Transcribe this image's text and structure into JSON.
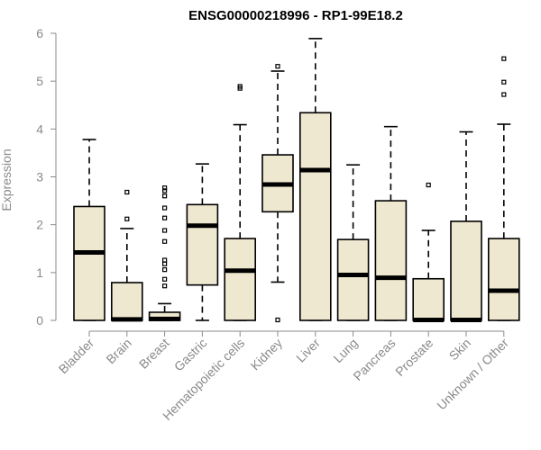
{
  "chart_data": {
    "type": "boxplot",
    "title": "ENSG00000218996 - RP1-99E18.2",
    "xlabel": "",
    "ylabel": "Expression",
    "ylim": [
      0,
      6
    ],
    "yticks": [
      0,
      1,
      2,
      3,
      4,
      5,
      6
    ],
    "categories": [
      "Bladder",
      "Brain",
      "Breast",
      "Gastric",
      "Hematopoietic cells",
      "Kidney",
      "Liver",
      "Lung",
      "Pancreas",
      "Prostate",
      "Skin",
      "Unknown / Other"
    ],
    "series": [
      {
        "name": "Bladder",
        "min": 0,
        "q1": 0,
        "median": 1.42,
        "q3": 2.38,
        "max": 3.78,
        "outliers": []
      },
      {
        "name": "Brain",
        "min": 0,
        "q1": 0,
        "median": 0.02,
        "q3": 0.79,
        "max": 1.92,
        "outliers": [
          2.12,
          2.68
        ]
      },
      {
        "name": "Breast",
        "min": 0,
        "q1": 0,
        "median": 0.03,
        "q3": 0.17,
        "max": 0.35,
        "outliers": [
          0.72,
          0.86,
          1.06,
          1.18,
          1.26,
          1.65,
          1.88,
          2.14,
          2.35,
          2.6,
          2.71,
          2.77
        ]
      },
      {
        "name": "Gastric",
        "min": 0,
        "q1": 0.74,
        "median": 1.98,
        "q3": 2.42,
        "max": 3.27,
        "outliers": []
      },
      {
        "name": "Hematopoietic cells",
        "min": 0,
        "q1": 0,
        "median": 1.04,
        "q3": 1.71,
        "max": 4.09,
        "outliers": [
          4.85,
          4.89
        ]
      },
      {
        "name": "Kidney",
        "min": 0.8,
        "q1": 2.27,
        "median": 2.84,
        "q3": 3.46,
        "max": 5.21,
        "outliers": [
          0.01,
          5.31
        ]
      },
      {
        "name": "Liver",
        "min": 0,
        "q1": 0,
        "median": 3.14,
        "q3": 4.34,
        "max": 5.89,
        "outliers": []
      },
      {
        "name": "Lung",
        "min": 0,
        "q1": 0,
        "median": 0.95,
        "q3": 1.69,
        "max": 3.25,
        "outliers": []
      },
      {
        "name": "Pancreas",
        "min": 0,
        "q1": 0,
        "median": 0.89,
        "q3": 2.5,
        "max": 4.05,
        "outliers": []
      },
      {
        "name": "Prostate",
        "min": 0,
        "q1": 0,
        "median": 0.01,
        "q3": 0.87,
        "max": 1.88,
        "outliers": [
          2.83
        ]
      },
      {
        "name": "Skin",
        "min": 0,
        "q1": 0,
        "median": 0.01,
        "q3": 2.07,
        "max": 3.94,
        "outliers": []
      },
      {
        "name": "Unknown / Other",
        "min": 0,
        "q1": 0,
        "median": 0.62,
        "q3": 1.71,
        "max": 4.1,
        "outliers": [
          4.72,
          4.98,
          5.47
        ]
      }
    ]
  }
}
